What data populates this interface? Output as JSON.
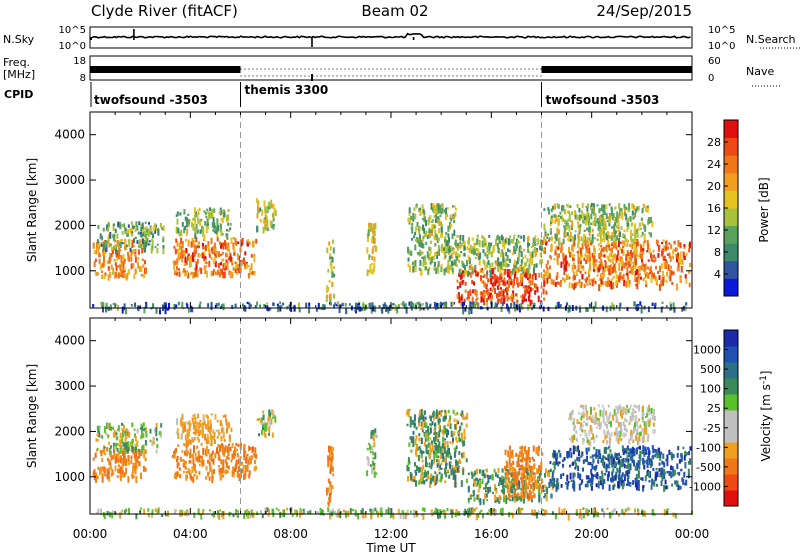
{
  "header": {
    "station": "Clyde River (fitACF)",
    "beam": "Beam 02",
    "date": "24/Sep/2015"
  },
  "chart_data": [
    {
      "type": "line",
      "name": "noise-panel",
      "left_label": "N.Sky",
      "right_label": "N.Search",
      "left_ticks": [
        "10^5",
        "10^0"
      ],
      "right_ticks": [
        "10^5",
        "10^0"
      ],
      "x_hours": [
        0,
        24
      ],
      "series": [
        {
          "name": "N.Sky",
          "style": "solid",
          "level": "low",
          "spikes_hours": [
            0.05,
            1.75,
            8.85,
            12.9
          ]
        },
        {
          "name": "N.Search",
          "style": "dotted"
        }
      ]
    },
    {
      "type": "line",
      "name": "freq-nave-panel",
      "left_label_top": "Freq.",
      "left_label_bottom": "[MHz]",
      "right_label": "Nave",
      "left_ticks": [
        "18",
        "8"
      ],
      "right_ticks": [
        "60",
        "0"
      ],
      "bands": [
        {
          "start": 0.0,
          "end": 6.0,
          "style": "solid"
        },
        {
          "start": 6.0,
          "end": 18.0,
          "style": "dotted"
        },
        {
          "start": 18.0,
          "end": 24.0,
          "style": "solid"
        }
      ]
    },
    {
      "type": "table",
      "name": "cpid",
      "label": "CPID",
      "programs": [
        {
          "name": "twofsound -3503",
          "start": 0.0,
          "end": 6.0
        },
        {
          "name": "themis 3300",
          "start": 6.0,
          "end": 18.0
        },
        {
          "name": "twofsound -3503",
          "start": 18.0,
          "end": 24.0
        }
      ]
    },
    {
      "type": "heatmap",
      "name": "power",
      "ylabel": "Slant Range [km]",
      "yticks": [
        1000,
        2000,
        3000,
        4000
      ],
      "ylim": [
        180,
        4500
      ],
      "xlim": [
        0,
        24
      ],
      "dashed_lines_hours": [
        6,
        18
      ],
      "colorbar": {
        "label": "Power [dB]",
        "ticks": [
          "4",
          "8",
          "12",
          "16",
          "20",
          "24",
          "28"
        ],
        "colors": [
          "#0a18d8",
          "#2f55a0",
          "#3c8a6a",
          "#5aa35c",
          "#a8c23c",
          "#e6c21e",
          "#f0a01e",
          "#f07818",
          "#ee4a14",
          "#e01010"
        ]
      },
      "patches": [
        {
          "t0": 0.1,
          "t1": 2.2,
          "r0": 900,
          "r1": 1700,
          "level": 0.72
        },
        {
          "t0": 0.2,
          "t1": 2.9,
          "r0": 1500,
          "r1": 2100,
          "level": 0.35
        },
        {
          "t0": 3.2,
          "t1": 6.6,
          "r0": 950,
          "r1": 1750,
          "level": 0.78
        },
        {
          "t0": 3.4,
          "t1": 5.6,
          "r0": 1800,
          "r1": 2400,
          "level": 0.4
        },
        {
          "t0": 6.6,
          "t1": 7.4,
          "r0": 1900,
          "r1": 2600,
          "level": 0.45
        },
        {
          "t0": 9.4,
          "t1": 9.7,
          "r0": 400,
          "r1": 1700,
          "level": 0.45
        },
        {
          "t0": 11.0,
          "t1": 11.4,
          "r0": 1000,
          "r1": 2100,
          "level": 0.55
        },
        {
          "t0": 12.6,
          "t1": 14.6,
          "r0": 1000,
          "r1": 2500,
          "level": 0.42
        },
        {
          "t0": 14.6,
          "t1": 18.2,
          "r0": 350,
          "r1": 1100,
          "level": 0.9
        },
        {
          "t0": 14.0,
          "t1": 18.0,
          "r0": 1000,
          "r1": 1800,
          "level": 0.4
        },
        {
          "t0": 18.0,
          "t1": 23.9,
          "r0": 700,
          "r1": 1700,
          "level": 0.75
        },
        {
          "t0": 18.0,
          "t1": 22.5,
          "r0": 1700,
          "r1": 2500,
          "level": 0.45
        },
        {
          "t0": 0.0,
          "t1": 24.0,
          "r0": 180,
          "r1": 330,
          "level": 0.2
        }
      ]
    },
    {
      "type": "heatmap",
      "name": "velocity",
      "ylabel": "Slant Range [km]",
      "xlabel": "Time UT",
      "yticks": [
        1000,
        2000,
        3000,
        4000
      ],
      "ylim": [
        180,
        4500
      ],
      "xlim": [
        0,
        24
      ],
      "xticks": [
        "00:00",
        "04:00",
        "08:00",
        "12:00",
        "16:00",
        "20:00",
        "00:00"
      ],
      "dashed_lines_hours": [
        6,
        18
      ],
      "colorbar": {
        "label": "Velocity [m s^-1]",
        "ticks": [
          "-1000",
          "-500",
          "-100",
          "-25",
          "25",
          "100",
          "500",
          "1000"
        ],
        "colors": [
          "#e01010",
          "#f04a14",
          "#f07818",
          "#f0a020",
          "#c0c0c0",
          "#c0c0c0",
          "#5ac02c",
          "#3c8a5a",
          "#2c7088",
          "#2050b0",
          "#1a2aa8"
        ]
      },
      "patches": [
        {
          "t0": 0.1,
          "t1": 2.2,
          "r0": 1000,
          "r1": 1700,
          "cls": "orange"
        },
        {
          "t0": 0.2,
          "t1": 2.8,
          "r0": 1600,
          "r1": 2200,
          "cls": "green"
        },
        {
          "t0": 3.2,
          "t1": 6.6,
          "r0": 1000,
          "r1": 1750,
          "cls": "orange"
        },
        {
          "t0": 3.4,
          "t1": 5.6,
          "r0": 1800,
          "r1": 2400,
          "cls": "lightorange"
        },
        {
          "t0": 6.6,
          "t1": 7.4,
          "r0": 1900,
          "r1": 2500,
          "cls": "green"
        },
        {
          "t0": 9.4,
          "t1": 9.7,
          "r0": 400,
          "r1": 1700,
          "cls": "orange"
        },
        {
          "t0": 11.0,
          "t1": 11.4,
          "r0": 1000,
          "r1": 2100,
          "cls": "green"
        },
        {
          "t0": 12.6,
          "t1": 15.0,
          "r0": 900,
          "r1": 2500,
          "cls": "teal"
        },
        {
          "t0": 15.0,
          "t1": 18.5,
          "r0": 500,
          "r1": 1200,
          "cls": "teal"
        },
        {
          "t0": 16.5,
          "t1": 18.0,
          "r0": 600,
          "r1": 1700,
          "cls": "orange"
        },
        {
          "t0": 18.3,
          "t1": 23.9,
          "r0": 800,
          "r1": 1700,
          "cls": "blue"
        },
        {
          "t0": 19.0,
          "t1": 22.5,
          "r0": 1800,
          "r1": 2600,
          "cls": "grey"
        },
        {
          "t0": 0.0,
          "t1": 24.0,
          "r0": 180,
          "r1": 330,
          "cls": "green"
        }
      ]
    }
  ]
}
